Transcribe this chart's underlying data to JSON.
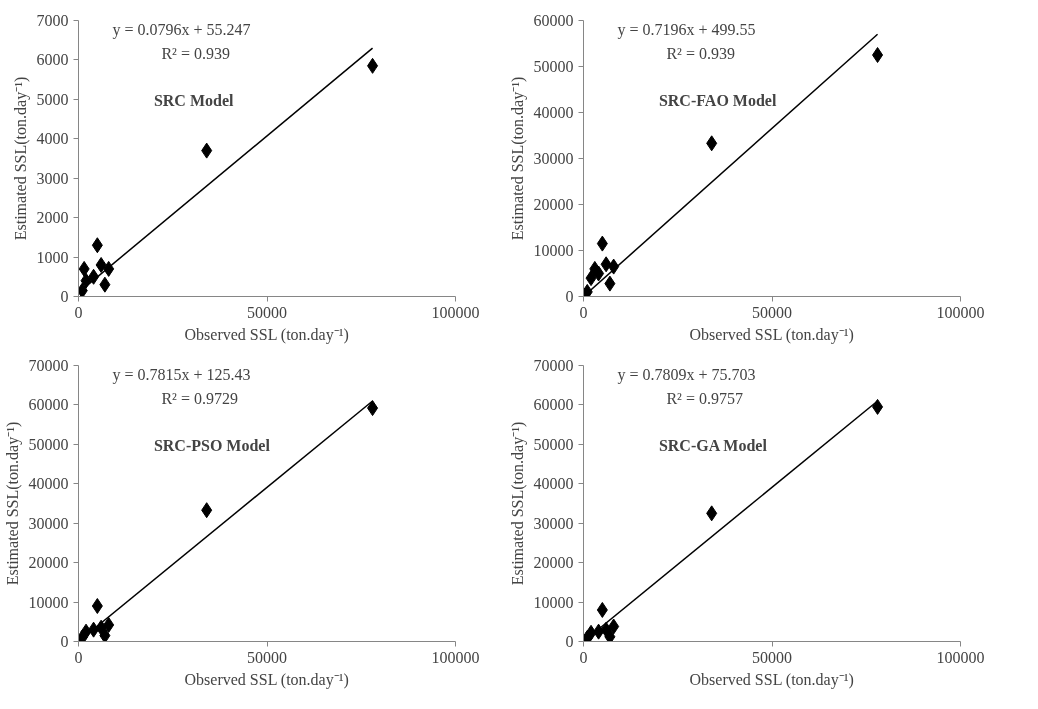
{
  "chart_data": [
    {
      "type": "scatter",
      "xlabel": "Observed SSL (ton.day⁻¹)",
      "ylabel": "Estimated SSL(ton.day⁻¹)",
      "marker": "diamond",
      "grid": false,
      "xlim": [
        0,
        100000
      ],
      "xticks": [
        0,
        50000,
        100000
      ],
      "ylim": [
        0,
        7000
      ],
      "yticks": [
        0,
        1000,
        2000,
        3000,
        4000,
        5000,
        6000,
        7000
      ],
      "annotations": [
        "y = 0.0796x + 55.247",
        "R² = 0.939",
        "SRC Model"
      ],
      "series": [
        {
          "color": "#000000",
          "x": [
            78000,
            34000,
            5000,
            8000,
            7000,
            3000,
            2000,
            1000,
            4000,
            6000,
            1500
          ],
          "values": [
            5850,
            3700,
            1300,
            700,
            300,
            null,
            400,
            150,
            500,
            800,
            700
          ]
        },
        {
          "type": "line",
          "marker": "none",
          "color": "#000000",
          "x": [
            0,
            78000
          ],
          "values": [
            100,
            6300
          ]
        }
      ]
    },
    {
      "type": "scatter",
      "xlabel": "Observed SSL (ton.day⁻¹)",
      "ylabel": "Estimated SSL(ton.day⁻¹)",
      "marker": "diamond",
      "grid": false,
      "xlim": [
        0,
        100000
      ],
      "xticks": [
        0,
        50000,
        100000
      ],
      "ylim": [
        0,
        60000
      ],
      "yticks": [
        0,
        10000,
        20000,
        30000,
        40000,
        50000,
        60000
      ],
      "annotations": [
        "y = 0.7196x + 499.55",
        "R² = 0.939",
        "SRC-FAO Model"
      ],
      "series": [
        {
          "color": "#000000",
          "x": [
            78000,
            34000,
            5000,
            8000,
            7000,
            3000,
            2000,
            1000,
            4000,
            6000
          ],
          "values": [
            52500,
            33300,
            11500,
            6500,
            2800,
            6000,
            4000,
            1000,
            5000,
            7000
          ]
        },
        {
          "type": "line",
          "marker": "none",
          "color": "#000000",
          "x": [
            0,
            78000
          ],
          "values": [
            0,
            57000
          ]
        }
      ]
    },
    {
      "type": "scatter",
      "xlabel": "Observed SSL (ton.day⁻¹)",
      "ylabel": "Estimated SSL(ton.day⁻¹)",
      "marker": "diamond",
      "grid": false,
      "xlim": [
        0,
        100000
      ],
      "xticks": [
        0,
        50000,
        100000
      ],
      "ylim": [
        0,
        70000
      ],
      "yticks": [
        0,
        10000,
        20000,
        30000,
        40000,
        50000,
        60000,
        70000
      ],
      "annotations": [
        "y = 0.7815x + 125.43",
        "R² = 0.9729",
        "SRC-PSO Model"
      ],
      "series": [
        {
          "color": "#000000",
          "x": [
            78000,
            34000,
            5000,
            8000,
            7000,
            3000,
            2000,
            1000,
            4000,
            6000
          ],
          "values": [
            59200,
            33300,
            9000,
            4200,
            1500,
            null,
            2500,
            1000,
            3000,
            3500
          ]
        },
        {
          "type": "line",
          "marker": "none",
          "color": "#000000",
          "x": [
            0,
            78000
          ],
          "values": [
            0,
            61000
          ]
        }
      ]
    },
    {
      "type": "scatter",
      "xlabel": "Observed SSL (ton.day⁻¹)",
      "ylabel": "Estimated SSL(ton.day⁻¹)",
      "marker": "diamond",
      "grid": false,
      "xlim": [
        0,
        100000
      ],
      "xticks": [
        0,
        50000,
        100000
      ],
      "ylim": [
        0,
        70000
      ],
      "yticks": [
        0,
        10000,
        20000,
        30000,
        40000,
        50000,
        60000,
        70000
      ],
      "annotations": [
        "y = 0.7809x + 75.703",
        "R² = 0.9757",
        "SRC-GA Model"
      ],
      "series": [
        {
          "color": "#000000",
          "x": [
            78000,
            34000,
            5000,
            8000,
            7000,
            3000,
            2000,
            1000,
            4000,
            6000
          ],
          "values": [
            59500,
            32500,
            8000,
            3800,
            1200,
            null,
            2200,
            900,
            2500,
            3000
          ]
        },
        {
          "type": "line",
          "marker": "none",
          "color": "#000000",
          "x": [
            0,
            78000
          ],
          "values": [
            0,
            61000
          ]
        }
      ]
    }
  ]
}
